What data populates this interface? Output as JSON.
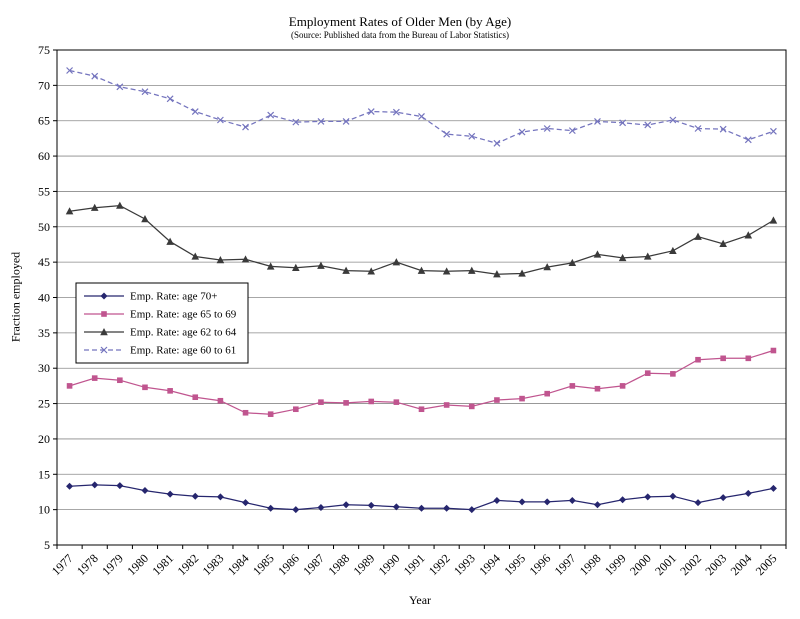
{
  "chart_data": {
    "type": "line",
    "title": "Employment Rates of Older Men (by Age)",
    "subtitle": "(Source: Published data from the Bureau of Labor Statistics)",
    "xlabel": "Year",
    "ylabel": "Fraction employed",
    "ylim": [
      5,
      75
    ],
    "ytick_step": 5,
    "grid": true,
    "legend_position": "inside-left",
    "categories": [
      "1977",
      "1978",
      "1979",
      "1980",
      "1981",
      "1982",
      "1983",
      "1984",
      "1985",
      "1986",
      "1987",
      "1988",
      "1989",
      "1990",
      "1991",
      "1992",
      "1993",
      "1994",
      "1995",
      "1996",
      "1997",
      "1998",
      "1999",
      "2000",
      "2001",
      "2002",
      "2003",
      "2004",
      "2005"
    ],
    "series": [
      {
        "name": "Emp. Rate: age 70+",
        "color": "#26266E",
        "marker": "diamond",
        "dash": "solid",
        "values": [
          13.3,
          13.5,
          13.4,
          12.7,
          12.2,
          11.9,
          11.8,
          11.0,
          10.2,
          10.0,
          10.3,
          10.7,
          10.6,
          10.4,
          10.2,
          10.2,
          10.0,
          11.3,
          11.1,
          11.1,
          11.3,
          10.7,
          11.4,
          11.8,
          11.9,
          11.0,
          11.7,
          12.3,
          13.0
        ]
      },
      {
        "name": "Emp. Rate: age 65 to 69",
        "color": "#C0558F",
        "marker": "square",
        "dash": "solid",
        "values": [
          27.5,
          28.6,
          28.3,
          27.3,
          26.8,
          25.9,
          25.4,
          23.7,
          23.5,
          24.2,
          25.2,
          25.1,
          25.3,
          25.2,
          24.2,
          24.8,
          24.6,
          25.5,
          25.7,
          26.4,
          27.5,
          27.1,
          27.5,
          29.3,
          29.2,
          31.2,
          31.4,
          31.4,
          32.5
        ]
      },
      {
        "name": "Emp. Rate: age 62 to 64",
        "color": "#3A3A3A",
        "marker": "triangle",
        "dash": "solid",
        "values": [
          52.2,
          52.7,
          53.0,
          51.1,
          47.9,
          45.8,
          45.3,
          45.4,
          44.4,
          44.2,
          44.5,
          43.8,
          43.7,
          45.0,
          43.8,
          43.7,
          43.8,
          43.3,
          43.4,
          44.3,
          44.9,
          46.1,
          45.6,
          45.8,
          46.6,
          48.6,
          47.6,
          48.8,
          50.9
        ]
      },
      {
        "name": "Emp. Rate: age 60 to 61",
        "color": "#7474BE",
        "marker": "x",
        "dash": "dashed",
        "values": [
          72.1,
          71.3,
          69.8,
          69.1,
          68.1,
          66.3,
          65.1,
          64.1,
          65.8,
          64.8,
          64.9,
          64.9,
          66.3,
          66.2,
          65.6,
          63.1,
          62.8,
          61.8,
          63.4,
          63.9,
          63.6,
          64.9,
          64.7,
          64.4,
          65.1,
          63.9,
          63.8,
          62.3,
          63.5
        ]
      }
    ]
  }
}
